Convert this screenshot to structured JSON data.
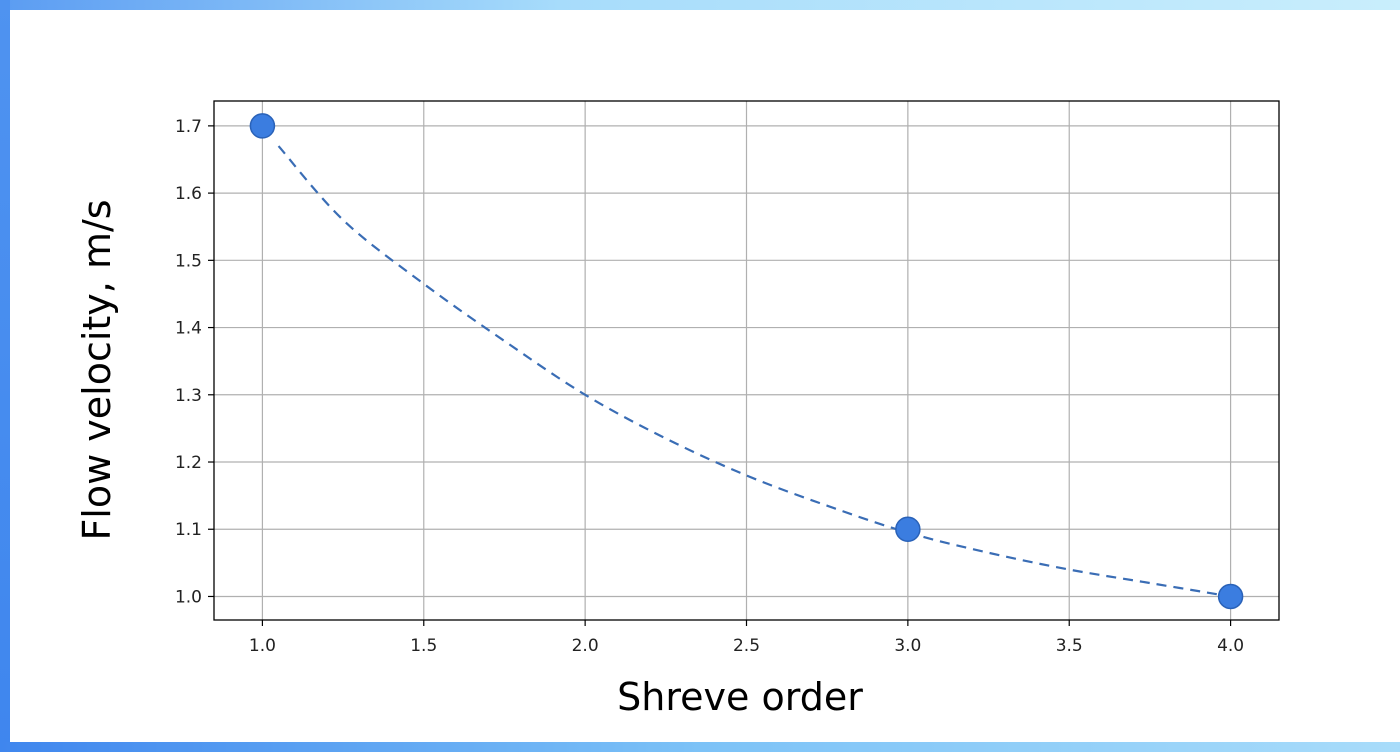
{
  "chart_data": {
    "type": "scatter",
    "xlabel": "Shreve order",
    "ylabel": "Flow velocity, m/s",
    "x": [
      1.0,
      3.0,
      4.0
    ],
    "y": [
      1.7,
      1.1,
      1.0
    ],
    "fit_curve": {
      "style": "dashed",
      "x": [
        1.05,
        1.25,
        1.5,
        1.75,
        2.0,
        2.25,
        2.5,
        2.75,
        3.0,
        3.25,
        3.5,
        3.75,
        4.0
      ],
      "y": [
        1.67,
        1.56,
        1.465,
        1.38,
        1.3,
        1.235,
        1.18,
        1.135,
        1.095,
        1.065,
        1.04,
        1.02,
        1.0
      ]
    },
    "xlim": [
      0.85,
      4.15
    ],
    "ylim": [
      0.965,
      1.737
    ],
    "xticks": [
      "1.0",
      "1.5",
      "2.0",
      "2.5",
      "3.0",
      "3.5",
      "4.0"
    ],
    "yticks": [
      "1.0",
      "1.1",
      "1.2",
      "1.3",
      "1.4",
      "1.5",
      "1.6",
      "1.7"
    ],
    "grid": true,
    "colors": {
      "marker": "#3b7de0",
      "marker_edge": "#2a62b8",
      "curve": "#3a6db5",
      "grid": "#b0b0b0"
    }
  }
}
